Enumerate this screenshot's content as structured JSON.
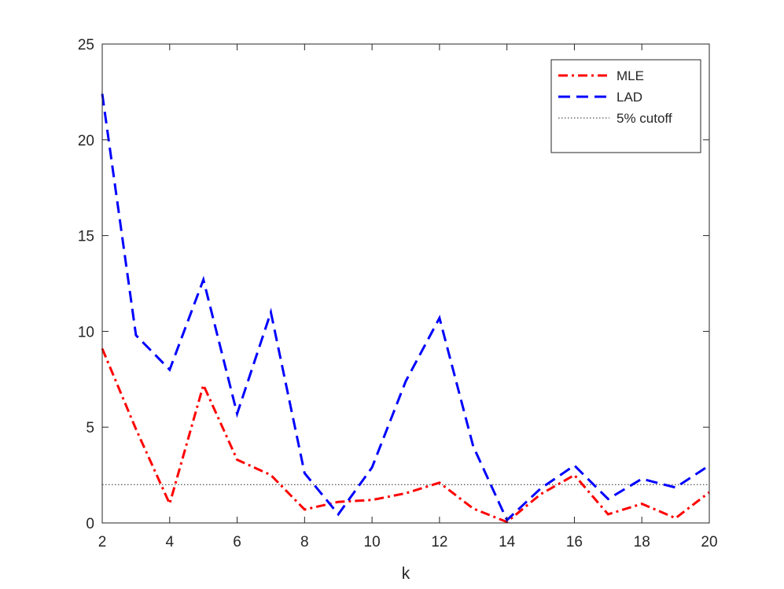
{
  "chart_data": {
    "type": "line",
    "title": "",
    "xlabel": "k",
    "ylabel": "",
    "xlim": [
      2,
      20
    ],
    "ylim": [
      0,
      25
    ],
    "xticks": [
      2,
      4,
      6,
      8,
      10,
      12,
      14,
      16,
      18,
      20
    ],
    "yticks": [
      0,
      5,
      10,
      15,
      20,
      25
    ],
    "grid": false,
    "legend_position": "top-right",
    "x": [
      2,
      3,
      4,
      5,
      6,
      7,
      8,
      9,
      10,
      11,
      12,
      13,
      14,
      15,
      16,
      17,
      18,
      19,
      20
    ],
    "series": [
      {
        "name": "MLE",
        "color": "#ff0000",
        "style": "dash-dot",
        "values": [
          9.1,
          4.9,
          1.0,
          7.2,
          3.3,
          2.5,
          0.7,
          1.1,
          1.2,
          1.55,
          2.1,
          0.75,
          0.05,
          1.5,
          2.5,
          0.45,
          1.0,
          0.25,
          1.6
        ]
      },
      {
        "name": "LAD",
        "color": "#0000ff",
        "style": "dashed",
        "values": [
          22.4,
          9.8,
          8.0,
          12.7,
          5.7,
          11.0,
          2.6,
          0.45,
          2.9,
          7.4,
          10.7,
          4.0,
          0.15,
          1.8,
          3.0,
          1.25,
          2.3,
          1.85,
          3.0
        ]
      },
      {
        "name": "5% cutoff",
        "color": "#262626",
        "style": "dotted",
        "constant": 2.0
      }
    ]
  }
}
